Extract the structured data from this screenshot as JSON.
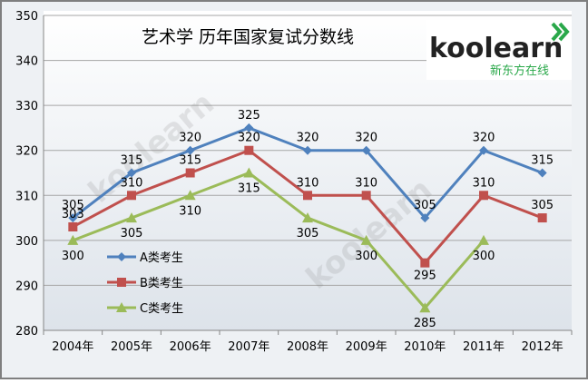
{
  "chart_data": {
    "type": "line",
    "title": "艺术学 历年国家复试分数线",
    "categories": [
      "2004年",
      "2005年",
      "2006年",
      "2007年",
      "2008年",
      "2009年",
      "2010年",
      "2011年",
      "2012年"
    ],
    "series": [
      {
        "name": "A类考生",
        "color": "#4F81BD",
        "marker": "diamond",
        "values": [
          305,
          315,
          320,
          325,
          320,
          320,
          305,
          320,
          315
        ]
      },
      {
        "name": "B类考生",
        "color": "#C0504D",
        "marker": "square",
        "values": [
          303,
          310,
          315,
          320,
          310,
          310,
          295,
          310,
          305
        ]
      },
      {
        "name": "C类考生",
        "color": "#9BBB59",
        "marker": "triangle",
        "values": [
          300,
          305,
          310,
          315,
          305,
          300,
          285,
          300,
          null
        ]
      }
    ],
    "ylim": [
      280,
      350
    ],
    "yticks": [
      280,
      290,
      300,
      310,
      320,
      330,
      340,
      350
    ],
    "grid": true,
    "legend_position": "left-inside"
  },
  "brand": {
    "logo_text": "koolearn",
    "logo_subtitle": "新东方在线"
  }
}
